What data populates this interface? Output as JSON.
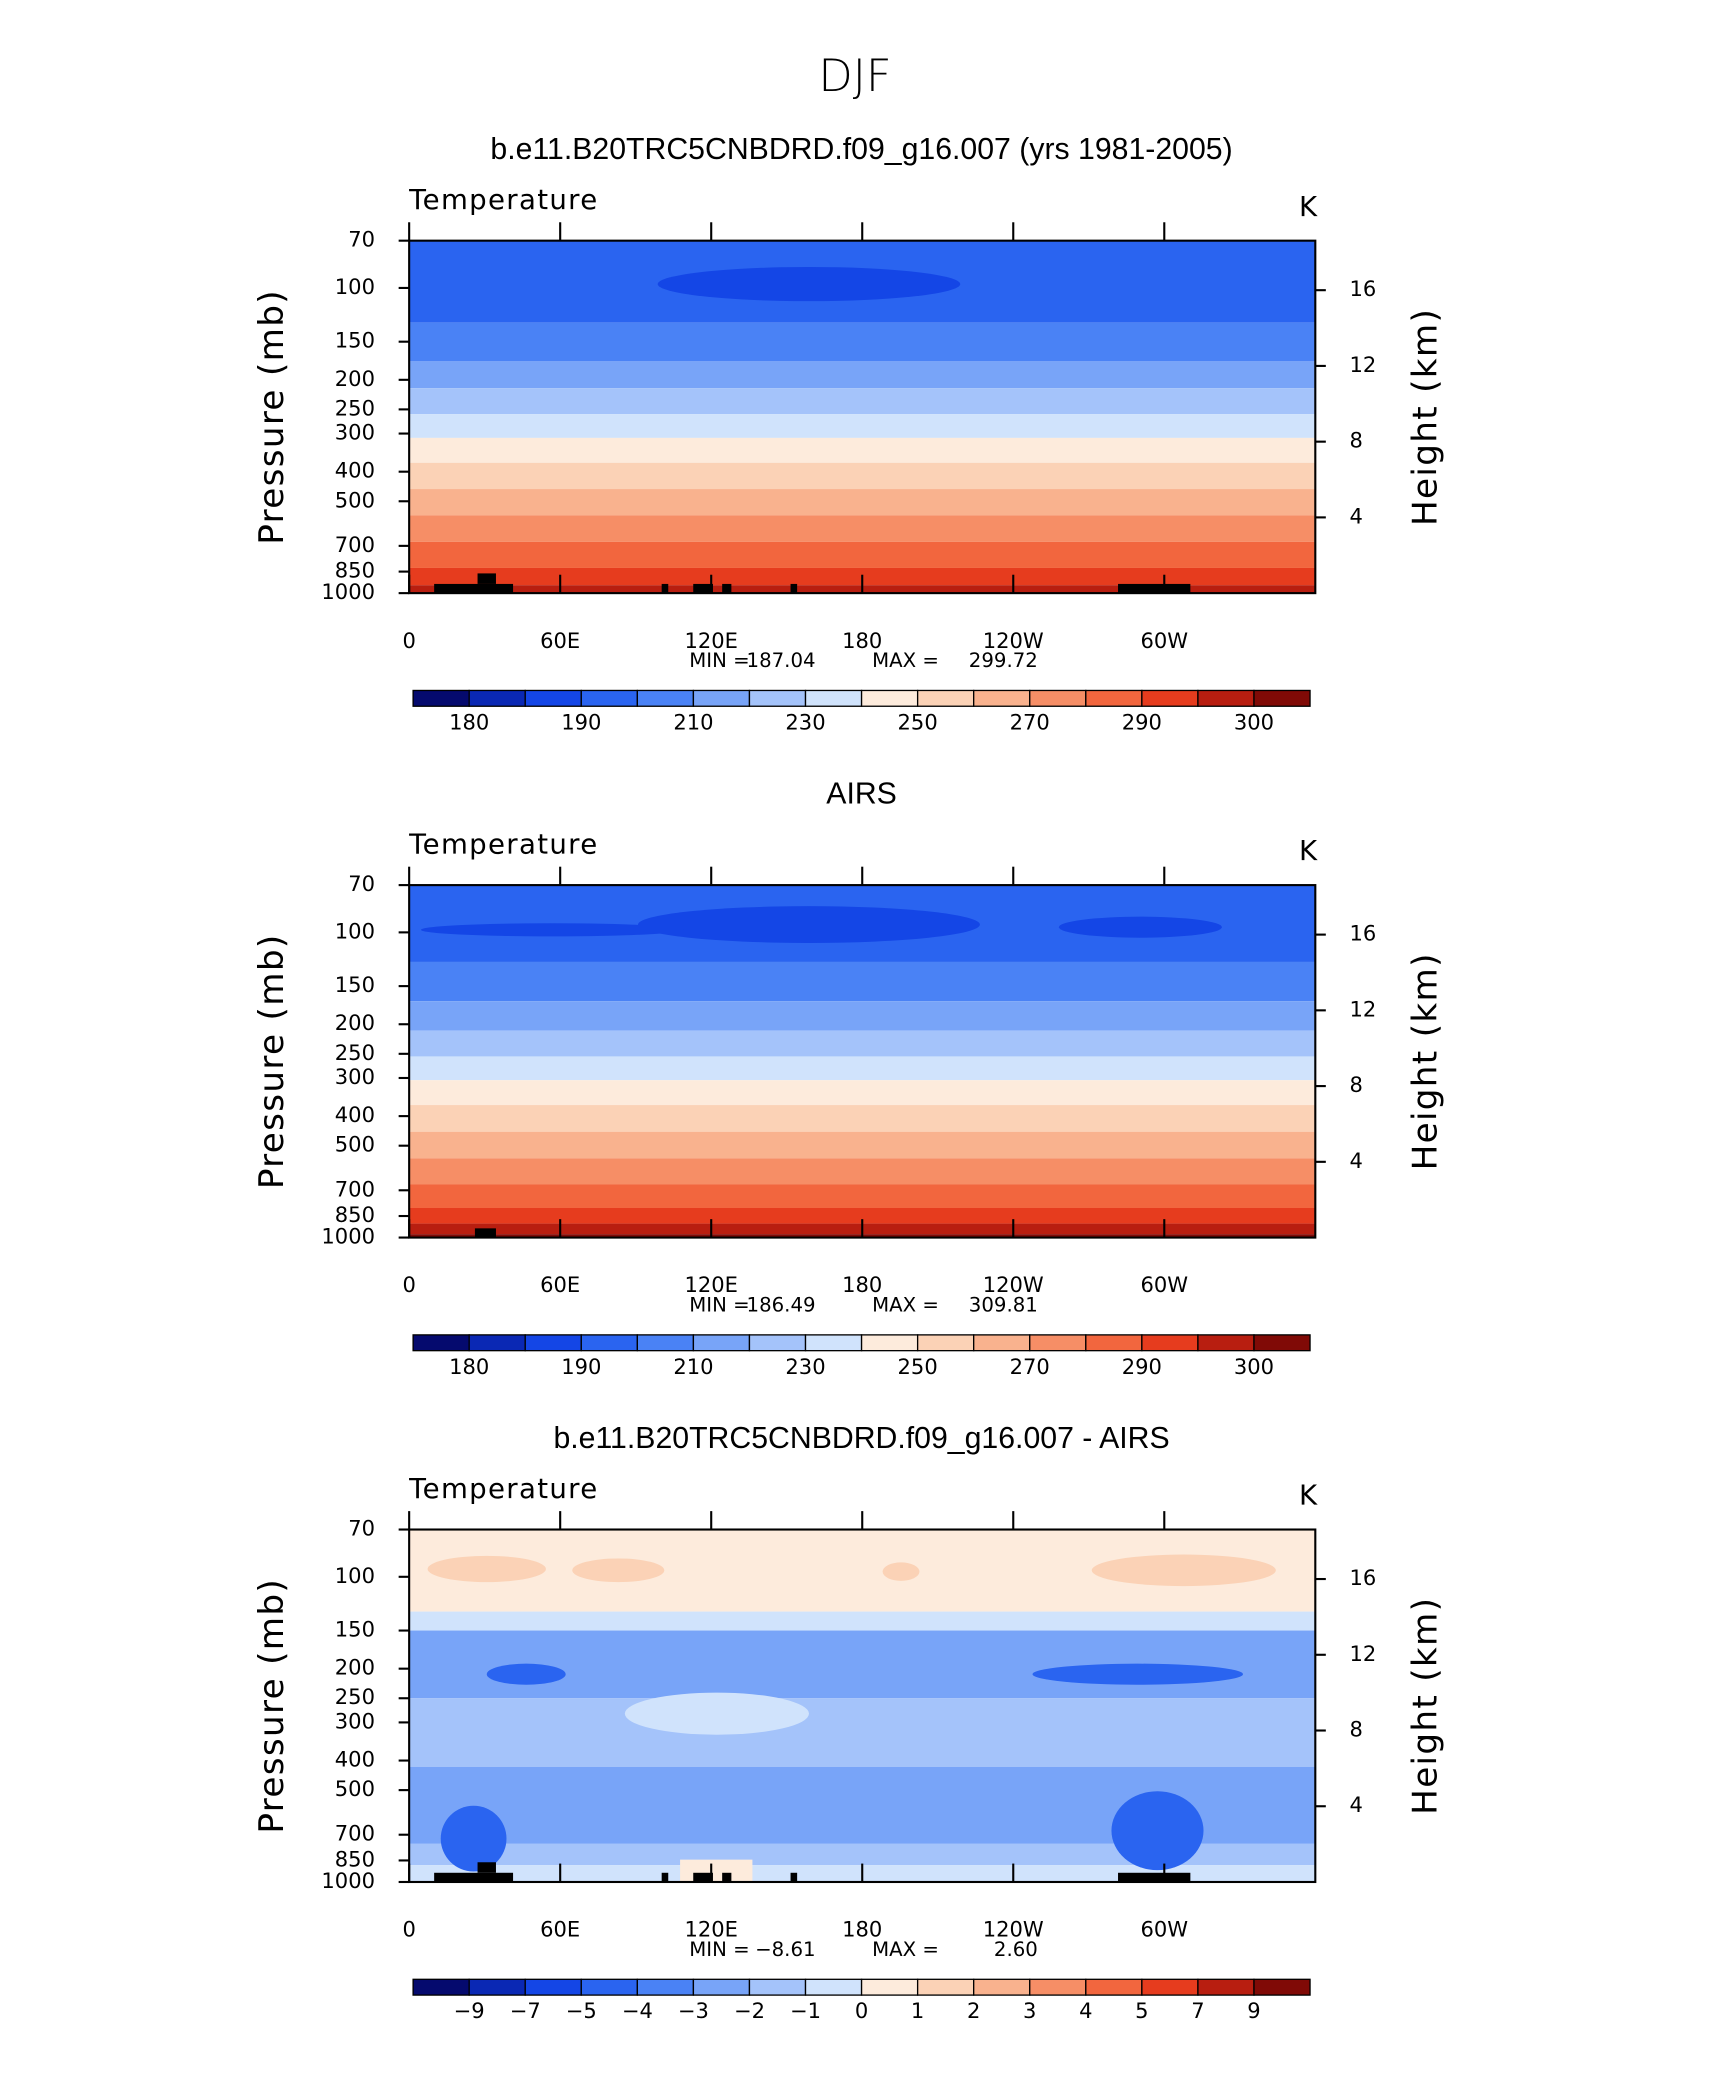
{
  "title": "DJF",
  "chart_data": [
    {
      "type": "contour",
      "title": "b.e11.B20TRC5CNBDRD.f09_g16.007 (yrs 1981-2005)",
      "variable": "Temperature",
      "units": "K",
      "ylabel": "Pressure (mb)",
      "y2label": "Height (km)",
      "xlim": [
        0,
        360
      ],
      "xticks": [
        0,
        {
          "value": 60,
          "label": "60E"
        },
        {
          "value": 120,
          "label": "120E"
        },
        180,
        {
          "value": 240,
          "label": "120W"
        },
        {
          "value": 300,
          "label": "60W"
        }
      ],
      "ylim": [
        70,
        1000
      ],
      "yscale": "log",
      "yticks": [
        70,
        100,
        150,
        200,
        250,
        300,
        400,
        500,
        700,
        850,
        1000
      ],
      "y2ticks": [
        4,
        8,
        12,
        16
      ],
      "scale_height": 7,
      "min_label": "MIN =",
      "min": 187.04,
      "max_label": "MAX =",
      "max": 299.72,
      "colorbar_colors": [
        "#050a6e",
        "#0a28b4",
        "#1446e6",
        "#2a64f0",
        "#4a82f5",
        "#78a4f8",
        "#a4c3fa",
        "#d0e3fc",
        "#fdebdc",
        "#fbd2b6",
        "#f9b28e",
        "#f68e66",
        "#f2663e",
        "#e63c1e",
        "#b81e10",
        "#800a06"
      ],
      "colorbar_labels": [
        180,
        190,
        210,
        230,
        250,
        270,
        290,
        300
      ],
      "band_edges": [
        70,
        130,
        174,
        213,
        259,
        310,
        374,
        456,
        556,
        679,
        827,
        942,
        1000
      ],
      "band_boxes": [
        3,
        4,
        5,
        6,
        7,
        8,
        9,
        10,
        11,
        12,
        13,
        14
      ]
    },
    {
      "type": "contour",
      "title": "AIRS",
      "variable": "Temperature",
      "units": "K",
      "ylabel": "Pressure (mb)",
      "y2label": "Height (km)",
      "xlim": [
        0,
        360
      ],
      "xticks": [
        0,
        {
          "value": 60,
          "label": "60E"
        },
        {
          "value": 120,
          "label": "120E"
        },
        180,
        {
          "value": 240,
          "label": "120W"
        },
        {
          "value": 300,
          "label": "60W"
        }
      ],
      "ylim": [
        70,
        1000
      ],
      "yscale": "log",
      "yticks": [
        70,
        100,
        150,
        200,
        250,
        300,
        400,
        500,
        700,
        850,
        1000
      ],
      "y2ticks": [
        4,
        8,
        12,
        16
      ],
      "scale_height": 7,
      "min_label": "MIN =",
      "min": 186.49,
      "max_label": "MAX =",
      "max": 309.81,
      "colorbar_colors": [
        "#050a6e",
        "#0a28b4",
        "#1446e6",
        "#2a64f0",
        "#4a82f5",
        "#78a4f8",
        "#a4c3fa",
        "#d0e3fc",
        "#fdebdc",
        "#fbd2b6",
        "#f9b28e",
        "#f68e66",
        "#f2663e",
        "#e63c1e",
        "#b81e10",
        "#800a06"
      ],
      "colorbar_labels": [
        180,
        190,
        210,
        230,
        250,
        270,
        290,
        300
      ],
      "band_edges": [
        70,
        125,
        168,
        210,
        255,
        305,
        368,
        450,
        550,
        670,
        800,
        900,
        975,
        1000
      ],
      "band_boxes": [
        3,
        4,
        5,
        6,
        7,
        8,
        9,
        10,
        11,
        12,
        13,
        14,
        15
      ]
    },
    {
      "type": "contour",
      "title": "b.e11.B20TRC5CNBDRD.f09_g16.007 - AIRS",
      "variable": "Temperature",
      "units": "K",
      "ylabel": "Pressure (mb)",
      "y2label": "Height (km)",
      "xlim": [
        0,
        360
      ],
      "xticks": [
        0,
        {
          "value": 60,
          "label": "60E"
        },
        {
          "value": 120,
          "label": "120E"
        },
        180,
        {
          "value": 240,
          "label": "120W"
        },
        {
          "value": 300,
          "label": "60W"
        }
      ],
      "ylim": [
        70,
        1000
      ],
      "yscale": "log",
      "yticks": [
        70,
        100,
        150,
        200,
        250,
        300,
        400,
        500,
        700,
        850,
        1000
      ],
      "y2ticks": [
        4,
        8,
        12,
        16
      ],
      "scale_height": 7,
      "min_label": "MIN =",
      "min": {
        "value": -8.61,
        "label": "−8.61"
      },
      "max_label": "MAX =",
      "max": {
        "value": 2.6,
        "label": "2.60"
      },
      "colorbar_colors": [
        "#050a6e",
        "#0a28b4",
        "#1446e6",
        "#2a64f0",
        "#4a82f5",
        "#78a4f8",
        "#a4c3fa",
        "#d0e3fc",
        "#fdebdc",
        "#fbd2b6",
        "#f9b28e",
        "#f68e66",
        "#f2663e",
        "#e63c1e",
        "#b81e10",
        "#800a06"
      ],
      "colorbar_labels": [
        {
          "value": -9,
          "label": "−9"
        },
        {
          "value": -7,
          "label": "−7"
        },
        {
          "value": -5,
          "label": "−5"
        },
        {
          "value": -4,
          "label": "−4"
        },
        {
          "value": -3,
          "label": "−3"
        },
        {
          "value": -2,
          "label": "−2"
        },
        {
          "value": -1,
          "label": "−1"
        },
        0,
        1,
        2,
        3,
        4,
        5,
        7,
        9
      ],
      "band_edges": [
        70,
        130,
        150,
        250,
        420,
        750,
        880,
        1000
      ],
      "band_boxes": [
        8,
        7,
        5,
        6,
        5,
        6,
        7
      ]
    }
  ]
}
